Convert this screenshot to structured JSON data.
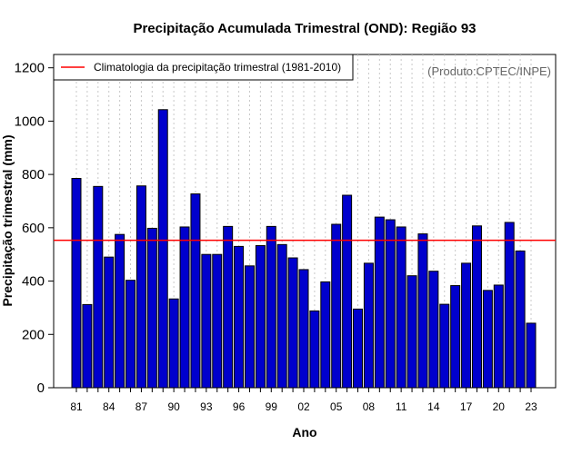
{
  "chart_data": {
    "type": "bar",
    "title": "Precipitação Acumulada Trimestral (OND): Região 93",
    "xlabel": "Ano",
    "ylabel": "Precipitação trimestral (mm)",
    "source": "(Produto:CPTEC/INPE)",
    "ylim": [
      0,
      1250
    ],
    "yticks": [
      0,
      200,
      400,
      600,
      800,
      1000,
      1200
    ],
    "tick_labels": [
      "81",
      "84",
      "87",
      "90",
      "93",
      "96",
      "99",
      "02",
      "05",
      "08",
      "11",
      "14",
      "17",
      "20",
      "23"
    ],
    "categories": [
      "1981",
      "1982",
      "1983",
      "1984",
      "1985",
      "1986",
      "1987",
      "1988",
      "1989",
      "1990",
      "1991",
      "1992",
      "1993",
      "1994",
      "1995",
      "1996",
      "1997",
      "1998",
      "1999",
      "2000",
      "2001",
      "2002",
      "2003",
      "2004",
      "2005",
      "2006",
      "2007",
      "2008",
      "2009",
      "2010",
      "2011",
      "2012",
      "2013",
      "2014",
      "2015",
      "2016",
      "2017",
      "2018",
      "2019",
      "2020",
      "2021",
      "2022",
      "2023"
    ],
    "values": [
      785,
      312,
      755,
      490,
      575,
      403,
      757,
      598,
      1043,
      333,
      603,
      727,
      500,
      500,
      605,
      530,
      457,
      533,
      605,
      537,
      487,
      443,
      288,
      397,
      613,
      722,
      295,
      467,
      640,
      630,
      603,
      420,
      577,
      437,
      313,
      383,
      467,
      607,
      365,
      385,
      620,
      513,
      242
    ],
    "climatology": {
      "label": "Climatologia da precipitação trimestral (1981-2010)",
      "value": 553,
      "color": "#ff0000"
    },
    "bar_color": "#0000cd",
    "legend_position": "top-left",
    "grid": "vertical-dotted"
  }
}
